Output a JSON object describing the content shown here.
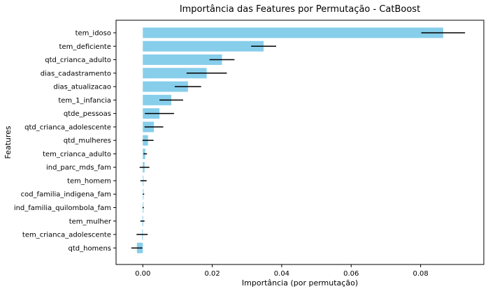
{
  "chart_data": {
    "type": "bar",
    "orientation": "horizontal",
    "title": "Importância das Features por Permutação - CatBoost",
    "xlabel": "Importância (por permutação)",
    "ylabel": "Features",
    "xlim": [
      -0.0077,
      0.0982
    ],
    "xticks": [
      0.0,
      0.02,
      0.04,
      0.06,
      0.08
    ],
    "xtick_labels": [
      "0.00",
      "0.02",
      "0.04",
      "0.06",
      "0.08"
    ],
    "categories": [
      "tem_idoso",
      "tem_deficiente",
      "qtd_crianca_adulto",
      "dias_cadastramento",
      "dias_atualizacao",
      "tem_1_infancia",
      "qtde_pessoas",
      "qtd_crianca_adolescente",
      "qtd_mulheres",
      "tem_crianca_adulto",
      "ind_parc_mds_fam",
      "tem_homem",
      "cod_familia_indigena_fam",
      "ind_familia_quilombola_fam",
      "tem_mulher",
      "tem_crianca_adolescente",
      "qtd_homens"
    ],
    "values": [
      0.0865,
      0.0348,
      0.0228,
      0.0184,
      0.013,
      0.0082,
      0.0048,
      0.0032,
      0.0015,
      0.0007,
      0.0005,
      0.0002,
      0.0002,
      0.0001,
      -0.0001,
      -0.0002,
      -0.0017
    ],
    "errors": [
      0.0063,
      0.0036,
      0.0036,
      0.0058,
      0.0038,
      0.0034,
      0.0042,
      0.0027,
      0.0016,
      0.0005,
      0.0014,
      0.0009,
      0.0002,
      0.0002,
      0.0006,
      0.0016,
      0.0016
    ],
    "bar_color": "#87ceeb",
    "error_color": "#000000",
    "grid": false
  }
}
